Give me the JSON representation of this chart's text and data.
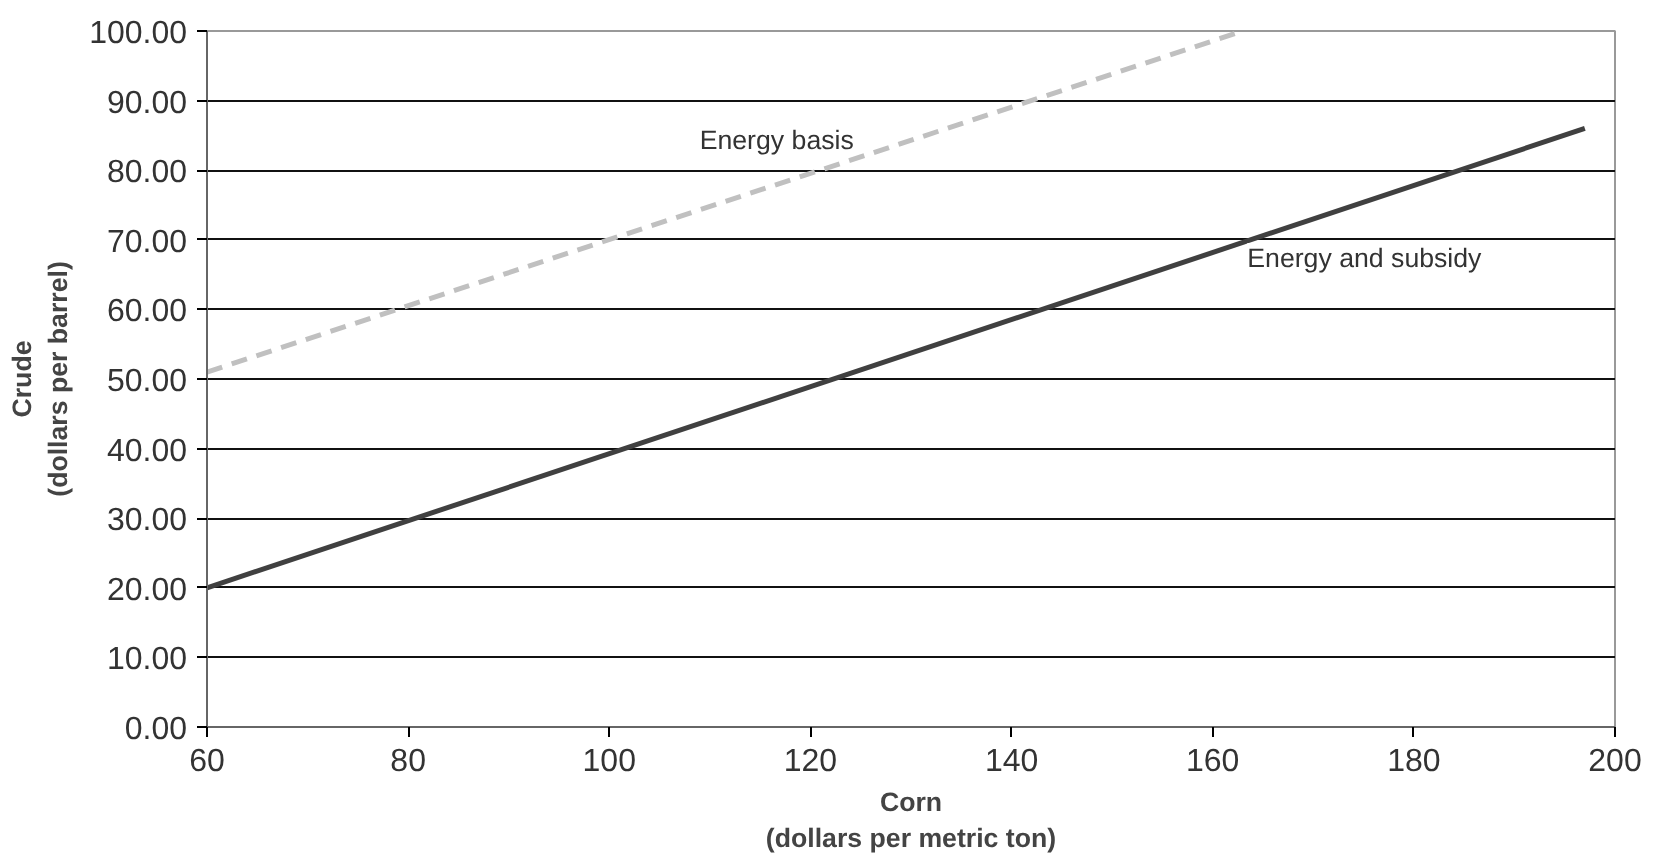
{
  "chart_data": {
    "type": "line",
    "xlabel": "Corn\n(dollars per metric ton)",
    "ylabel": "Crude\n(dollars per barrel)",
    "series": [
      {
        "name": "Energy basis",
        "color": "#c0c0c0",
        "line_style": "dashed",
        "x": [
          60,
          163
        ],
        "values": [
          51,
          100
        ]
      },
      {
        "name": "Energy and subsidy",
        "color": "#404040",
        "line_style": "solid",
        "x": [
          60,
          197
        ],
        "values": [
          20,
          86
        ]
      }
    ],
    "xlim": [
      60,
      200
    ],
    "xticks": [
      60,
      80,
      100,
      120,
      140,
      160,
      180,
      200
    ],
    "ylim": [
      0,
      100
    ],
    "yticks": [
      {
        "value": 0,
        "label": "0.00"
      },
      {
        "value": 10,
        "label": "10.00"
      },
      {
        "value": 20,
        "label": "20.00"
      },
      {
        "value": 30,
        "label": "30.00"
      },
      {
        "value": 40,
        "label": "40.00"
      },
      {
        "value": 50,
        "label": "50.00"
      },
      {
        "value": 60,
        "label": "60.00"
      },
      {
        "value": 70,
        "label": "70.00"
      },
      {
        "value": 80,
        "label": "80.00"
      },
      {
        "value": 90,
        "label": "90.00"
      },
      {
        "value": 100,
        "label": "100.00"
      }
    ],
    "grid": "y",
    "legend": false,
    "marker": "none"
  }
}
